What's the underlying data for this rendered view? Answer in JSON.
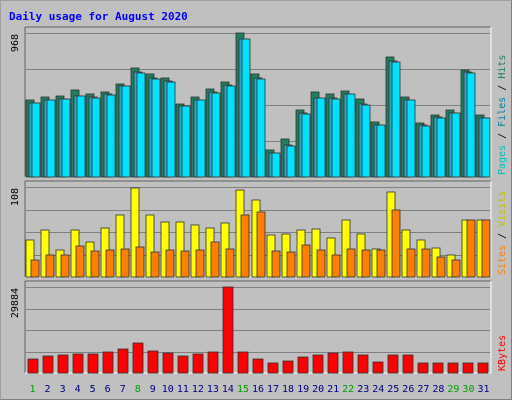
{
  "chart_data": {
    "type": "bar",
    "title": "Daily usage for August 2020",
    "categories": [
      "1",
      "2",
      "3",
      "4",
      "5",
      "6",
      "7",
      "8",
      "9",
      "10",
      "11",
      "12",
      "13",
      "14",
      "15",
      "16",
      "17",
      "18",
      "19",
      "20",
      "21",
      "22",
      "23",
      "24",
      "25",
      "26",
      "27",
      "28",
      "29",
      "30",
      "31"
    ],
    "weekend_days": [
      "1",
      "8",
      "15",
      "22",
      "29",
      "30"
    ],
    "panels": [
      {
        "id": "pfh",
        "ytick_label": "968",
        "ymax": 968,
        "series": [
          {
            "name": "Hits",
            "color": "#1f7f5f",
            "values": [
              517,
              537,
              542,
              586,
              559,
              573,
              628,
              731,
              694,
              663,
              490,
              539,
              593,
              638,
              968,
              690,
              183,
              254,
              452,
              572,
              557,
              580,
              522,
              367,
              810,
              539,
              364,
              414,
              449,
              718,
              417
            ]
          },
          {
            "name": "Files",
            "color": "#2fa7c7",
            "values": [
              499,
              518,
              522,
              544,
              538,
              556,
              612,
              705,
              666,
              643,
              477,
              519,
              571,
              617,
              929,
              667,
              163,
              213,
              428,
              532,
              532,
              557,
              488,
              351,
              779,
              518,
              351,
              400,
              432,
              705,
              398
            ]
          },
          {
            "name": "Pages",
            "color": "#00e1ff",
            "values": [
              497,
              516,
              522,
              544,
              534,
              553,
              609,
              699,
              662,
              640,
              474,
              517,
              566,
              610,
              926,
              660,
              160,
              209,
              424,
              530,
              525,
              555,
              483,
              347,
              775,
              515,
              345,
              397,
              428,
              700,
              396
            ]
          }
        ]
      },
      {
        "id": "sv",
        "ytick_label": "108",
        "ymax": 108,
        "series": [
          {
            "name": "Visits",
            "color": "#ffff00",
            "values": [
              45,
              57,
              32,
              56,
              42,
              59,
              75,
              107,
              74,
              66,
              66,
              63,
              59,
              65,
              105,
              92,
              50,
              52,
              57,
              58,
              47,
              69,
              52,
              34,
              102,
              56,
              44,
              35,
              27,
              69,
              69
            ]
          },
          {
            "name": "Sites",
            "color": "#ff8000",
            "values": [
              21,
              26,
              26,
              37,
              31,
              32,
              34,
              36,
              30,
              32,
              31,
              33,
              42,
              34,
              75,
              78,
              31,
              30,
              38,
              33,
              26,
              34,
              32,
              32,
              81,
              34,
              34,
              24,
              20,
              69,
              69
            ]
          }
        ]
      },
      {
        "id": "kb",
        "ytick_label": "29884",
        "ymax": 29884,
        "series": [
          {
            "name": "KBytes",
            "color": "#ff0000",
            "values": [
              4900,
              5800,
              6300,
              6600,
              6600,
              7200,
              8300,
              10400,
              7700,
              6800,
              6000,
              6700,
              7300,
              29884,
              7200,
              5000,
              3600,
              4200,
              5600,
              6400,
              7000,
              7300,
              6400,
              3800,
              6300,
              6400,
              3600,
              3600,
              3600,
              3600,
              3600
            ]
          }
        ]
      }
    ],
    "legend": {
      "pfh": [
        {
          "text": "Pages",
          "color": "#00c0c0"
        },
        {
          "text": " / ",
          "color": "#000000"
        },
        {
          "text": "Files",
          "color": "#0080a0"
        },
        {
          "text": " / ",
          "color": "#000000"
        },
        {
          "text": "Hits",
          "color": "#1f7f5f"
        }
      ],
      "sv": [
        {
          "text": "Sites",
          "color": "#ff8000"
        },
        {
          "text": " / ",
          "color": "#000000"
        },
        {
          "text": "Visits",
          "color": "#c0c000"
        }
      ],
      "kb": [
        {
          "text": "KBytes",
          "color": "#ff0000"
        }
      ]
    },
    "colors": {
      "background": "#c0c0c0",
      "plot_area": "#c0c0c0",
      "title": "#0000ff",
      "weekday_label": "#000080",
      "weekend_label": "#00a000"
    }
  }
}
